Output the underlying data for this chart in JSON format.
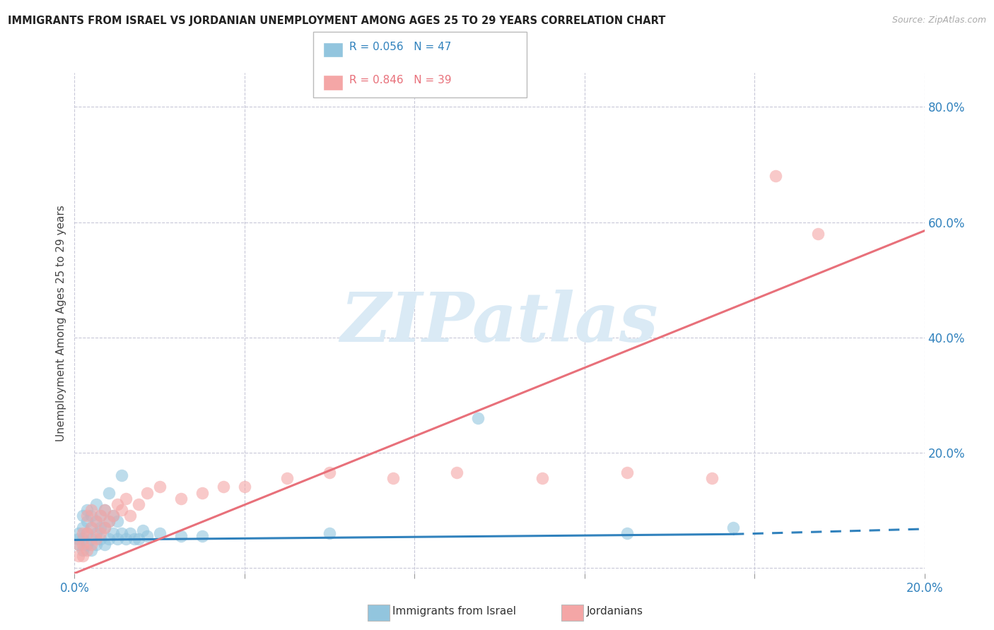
{
  "title": "IMMIGRANTS FROM ISRAEL VS JORDANIAN UNEMPLOYMENT AMONG AGES 25 TO 29 YEARS CORRELATION CHART",
  "source": "Source: ZipAtlas.com",
  "ylabel": "Unemployment Among Ages 25 to 29 years",
  "xlim": [
    0.0,
    0.2
  ],
  "ylim": [
    -0.01,
    0.86
  ],
  "xticks": [
    0.0,
    0.04,
    0.08,
    0.12,
    0.16,
    0.2
  ],
  "xticklabels": [
    "0.0%",
    "",
    "",
    "",
    "",
    "20.0%"
  ],
  "yticks_right": [
    0.0,
    0.2,
    0.4,
    0.6,
    0.8
  ],
  "yticklabels_right": [
    "",
    "20.0%",
    "40.0%",
    "60.0%",
    "80.0%"
  ],
  "legend_label_blue": "Immigrants from Israel",
  "legend_label_pink": "Jordanians",
  "blue_color": "#92c5de",
  "pink_color": "#f4a6a6",
  "blue_line_color": "#3182bd",
  "pink_line_color": "#e8707a",
  "watermark_text": "ZIPatlas",
  "watermark_color": "#daeaf5",
  "blue_scatter_x": [
    0.001,
    0.001,
    0.001,
    0.002,
    0.002,
    0.002,
    0.002,
    0.003,
    0.003,
    0.003,
    0.003,
    0.004,
    0.004,
    0.004,
    0.004,
    0.005,
    0.005,
    0.005,
    0.005,
    0.006,
    0.006,
    0.006,
    0.007,
    0.007,
    0.007,
    0.008,
    0.008,
    0.008,
    0.009,
    0.009,
    0.01,
    0.01,
    0.011,
    0.011,
    0.012,
    0.013,
    0.014,
    0.015,
    0.016,
    0.017,
    0.02,
    0.025,
    0.03,
    0.06,
    0.095,
    0.13,
    0.155
  ],
  "blue_scatter_y": [
    0.04,
    0.05,
    0.06,
    0.03,
    0.05,
    0.07,
    0.09,
    0.04,
    0.06,
    0.08,
    0.1,
    0.03,
    0.05,
    0.07,
    0.09,
    0.04,
    0.06,
    0.08,
    0.11,
    0.05,
    0.07,
    0.09,
    0.04,
    0.07,
    0.1,
    0.05,
    0.08,
    0.13,
    0.06,
    0.09,
    0.05,
    0.08,
    0.16,
    0.06,
    0.05,
    0.06,
    0.05,
    0.05,
    0.065,
    0.055,
    0.06,
    0.055,
    0.055,
    0.06,
    0.26,
    0.06,
    0.07
  ],
  "pink_scatter_x": [
    0.001,
    0.001,
    0.002,
    0.002,
    0.002,
    0.003,
    0.003,
    0.003,
    0.004,
    0.004,
    0.004,
    0.005,
    0.005,
    0.006,
    0.006,
    0.007,
    0.007,
    0.008,
    0.009,
    0.01,
    0.011,
    0.012,
    0.013,
    0.015,
    0.017,
    0.02,
    0.025,
    0.03,
    0.035,
    0.04,
    0.05,
    0.06,
    0.075,
    0.09,
    0.11,
    0.13,
    0.15,
    0.165,
    0.175
  ],
  "pink_scatter_y": [
    0.02,
    0.04,
    0.02,
    0.04,
    0.06,
    0.03,
    0.06,
    0.09,
    0.04,
    0.07,
    0.1,
    0.05,
    0.08,
    0.06,
    0.09,
    0.07,
    0.1,
    0.08,
    0.09,
    0.11,
    0.1,
    0.12,
    0.09,
    0.11,
    0.13,
    0.14,
    0.12,
    0.13,
    0.14,
    0.14,
    0.155,
    0.165,
    0.155,
    0.165,
    0.155,
    0.165,
    0.155,
    0.68,
    0.58
  ],
  "blue_trend_x0": 0.0,
  "blue_trend_x1": 0.155,
  "blue_trend_x2": 0.2,
  "blue_trend_y0": 0.048,
  "blue_trend_y1": 0.058,
  "blue_trend_y2": 0.067,
  "pink_trend_x0": 0.0,
  "pink_trend_x1": 0.2,
  "pink_trend_y0": -0.01,
  "pink_trend_y1": 0.585
}
